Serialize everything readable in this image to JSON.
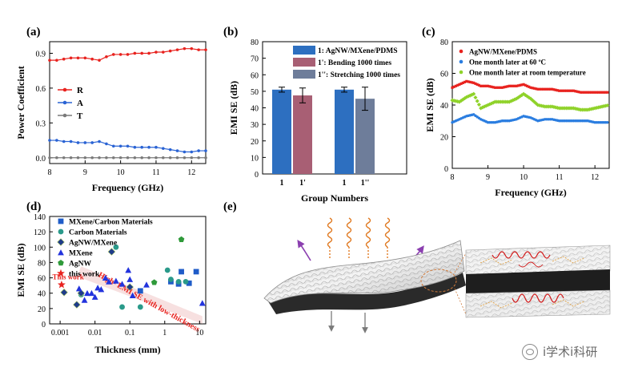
{
  "chart_data": [
    {
      "panel": "(a)",
      "type": "line",
      "xlabel": "Frequency (GHz)",
      "ylabel": "Power Coefficient",
      "xlim": [
        8,
        12.4
      ],
      "ylim": [
        -0.05,
        1.0
      ],
      "xticks": [
        "8",
        "9",
        "10",
        "11",
        "12"
      ],
      "yticks": [
        "0.0",
        "0.3",
        "0.6",
        "0.9"
      ],
      "legend": [
        {
          "name": "R",
          "color": "#e8221e"
        },
        {
          "name": "A",
          "color": "#2a63d4"
        },
        {
          "name": "T",
          "color": "#7a7a7a"
        }
      ],
      "series": [
        {
          "name": "R",
          "color": "#e8221e",
          "x": [
            8.0,
            8.2,
            8.4,
            8.6,
            8.8,
            9.0,
            9.2,
            9.4,
            9.6,
            9.8,
            10.0,
            10.2,
            10.4,
            10.6,
            10.8,
            11.0,
            11.2,
            11.4,
            11.6,
            11.8,
            12.0,
            12.2,
            12.4
          ],
          "y": [
            0.84,
            0.84,
            0.85,
            0.86,
            0.86,
            0.86,
            0.85,
            0.84,
            0.87,
            0.89,
            0.89,
            0.89,
            0.9,
            0.9,
            0.9,
            0.91,
            0.91,
            0.92,
            0.93,
            0.94,
            0.94,
            0.93,
            0.93
          ]
        },
        {
          "name": "A",
          "color": "#2a63d4",
          "x": [
            8.0,
            8.2,
            8.4,
            8.6,
            8.8,
            9.0,
            9.2,
            9.4,
            9.6,
            9.8,
            10.0,
            10.2,
            10.4,
            10.6,
            10.8,
            11.0,
            11.2,
            11.4,
            11.6,
            11.8,
            12.0,
            12.2,
            12.4
          ],
          "y": [
            0.15,
            0.15,
            0.14,
            0.14,
            0.13,
            0.13,
            0.13,
            0.14,
            0.12,
            0.1,
            0.1,
            0.1,
            0.09,
            0.09,
            0.09,
            0.09,
            0.08,
            0.07,
            0.06,
            0.05,
            0.05,
            0.06,
            0.06
          ]
        },
        {
          "name": "T",
          "color": "#7a7a7a",
          "x": [
            8.0,
            8.2,
            8.4,
            8.6,
            8.8,
            9.0,
            9.2,
            9.4,
            9.6,
            9.8,
            10.0,
            10.2,
            10.4,
            10.6,
            10.8,
            11.0,
            11.2,
            11.4,
            11.6,
            11.8,
            12.0,
            12.2,
            12.4
          ],
          "y": [
            0,
            0,
            0,
            0,
            0,
            0,
            0,
            0,
            0,
            0,
            0,
            0,
            0,
            0,
            0,
            0,
            0,
            0,
            0,
            0,
            0,
            0,
            0
          ]
        }
      ]
    },
    {
      "panel": "(b)",
      "type": "bar",
      "xlabel": "Group Numbers",
      "ylabel": "EMI SE (dB)",
      "ylim": [
        0,
        80
      ],
      "yticks": [
        "0",
        "10",
        "20",
        "30",
        "40",
        "50",
        "60",
        "70",
        "80"
      ],
      "legend": [
        {
          "name": "1: AgNW/MXene/PDMS",
          "color": "#2d6fc0"
        },
        {
          "name": "1': Bending 1000 times",
          "color": "#a85f74"
        },
        {
          "name": "1'': Stretching 1000 times",
          "color": "#6e7d9a"
        }
      ],
      "bars": [
        {
          "label": "1",
          "value": 51,
          "error": 1.5,
          "color": "#2d6fc0"
        },
        {
          "label": "1'",
          "value": 47.5,
          "error": 4.5,
          "color": "#a85f74"
        },
        {
          "label": "1",
          "value": 51,
          "error": 1.5,
          "color": "#2d6fc0"
        },
        {
          "label": "1''",
          "value": 45.5,
          "error": 7,
          "color": "#6e7d9a"
        }
      ]
    },
    {
      "panel": "(c)",
      "type": "scatter",
      "xlabel": "Frequency (GHz)",
      "ylabel": "EMI SE (dB)",
      "xlim": [
        8,
        12.4
      ],
      "ylim": [
        0,
        80
      ],
      "xticks": [
        "8",
        "9",
        "10",
        "11",
        "12"
      ],
      "yticks": [
        "0",
        "20",
        "40",
        "60",
        "80"
      ],
      "legend": [
        {
          "name": "AgNW/MXene/PDMS",
          "color": "#e8221e"
        },
        {
          "name": "One month later at 60 ºC",
          "color": "#2a7de0"
        },
        {
          "name": "One month later at room temperature",
          "color": "#8fd22a"
        }
      ],
      "series": [
        {
          "name": "AgNW/MXene/PDMS",
          "color": "#e8221e",
          "x": [
            8.0,
            8.2,
            8.4,
            8.6,
            8.8,
            9.0,
            9.2,
            9.4,
            9.6,
            9.8,
            10.0,
            10.2,
            10.4,
            10.6,
            10.8,
            11.0,
            11.2,
            11.4,
            11.6,
            11.8,
            12.0,
            12.2,
            12.4
          ],
          "y": [
            51,
            53,
            55,
            54,
            52,
            52,
            51,
            51,
            52,
            52,
            53,
            51,
            50,
            50,
            50,
            49,
            49,
            49,
            48,
            48,
            48,
            48,
            48
          ]
        },
        {
          "name": "One month later at 60 ºC",
          "color": "#2a7de0",
          "x": [
            8.0,
            8.2,
            8.4,
            8.6,
            8.8,
            9.0,
            9.2,
            9.4,
            9.6,
            9.8,
            10.0,
            10.2,
            10.4,
            10.6,
            10.8,
            11.0,
            11.2,
            11.4,
            11.6,
            11.8,
            12.0,
            12.2,
            12.4
          ],
          "y": [
            29,
            31,
            33,
            34,
            31,
            29,
            29,
            30,
            30,
            31,
            33,
            32,
            30,
            31,
            31,
            30,
            30,
            30,
            30,
            30,
            29,
            29,
            29
          ]
        },
        {
          "name": "One month later at room temperature",
          "color": "#8fd22a",
          "x": [
            8.0,
            8.2,
            8.4,
            8.6,
            8.8,
            9.0,
            9.2,
            9.4,
            9.6,
            9.8,
            10.0,
            10.2,
            10.4,
            10.6,
            10.8,
            11.0,
            11.2,
            11.4,
            11.6,
            11.8,
            12.0,
            12.2,
            12.4
          ],
          "y": [
            43,
            42,
            45,
            47,
            38,
            40,
            42,
            42,
            42,
            44,
            47,
            44,
            40,
            39,
            39,
            38,
            38,
            38,
            37,
            37,
            38,
            39,
            40
          ]
        }
      ]
    },
    {
      "panel": "(d)",
      "type": "scatter",
      "xlabel": "Thickness (mm)",
      "ylabel": "EMI SE (dB)",
      "xscale": "log",
      "xlim": [
        0.0005,
        15
      ],
      "ylim": [
        0,
        140
      ],
      "xticks": [
        "0.001",
        "0.01",
        "0.1",
        "1",
        "10"
      ],
      "yticks": [
        "0",
        "20",
        "40",
        "60",
        "80",
        "100",
        "120",
        "140"
      ],
      "annotation_this_work": "This work",
      "annotation_trend": "High- EMI SE with low-thickness",
      "legend": [
        {
          "name": "MXene/Carbon Materials",
          "color": "#1f5cc8",
          "shape": "square"
        },
        {
          "name": "Carbon Materials",
          "color": "#2a9a8a",
          "shape": "circle"
        },
        {
          "name": "AgNW/MXene",
          "color": "#1f3c8a",
          "shape": "diamond"
        },
        {
          "name": "MXene",
          "color": "#2233dd",
          "shape": "triangle"
        },
        {
          "name": "AgNW",
          "color": "#2f9a3a",
          "shape": "pentagon"
        },
        {
          "name": "this work",
          "color": "#e8221e",
          "shape": "star"
        }
      ],
      "series": [
        {
          "name": "MXene/Carbon Materials",
          "x": [
            1.5,
            2.5,
            3,
            5,
            8,
            0.2
          ],
          "y": [
            55,
            52,
            68,
            53,
            68,
            43
          ]
        },
        {
          "name": "Carbon Materials",
          "x": [
            0.004,
            0.04,
            0.06,
            0.2,
            1.2,
            1.5,
            2.5,
            4
          ],
          "y": [
            38,
            100,
            22,
            22,
            70,
            58,
            55,
            55
          ]
        },
        {
          "name": "AgNW/MXene",
          "x": [
            0.0013,
            0.003,
            0.004,
            0.03,
            0.1
          ],
          "y": [
            41,
            25,
            40,
            94,
            48
          ]
        },
        {
          "name": "MXene",
          "x": [
            0.0035,
            0.005,
            0.006,
            0.008,
            0.01,
            0.012,
            0.015,
            0.02,
            0.025,
            0.04,
            0.06,
            0.09,
            0.1,
            0.12,
            0.3,
            12
          ],
          "y": [
            46,
            31,
            40,
            40,
            35,
            47,
            45,
            60,
            55,
            56,
            52,
            70,
            58,
            37,
            51,
            27
          ]
        },
        {
          "name": "AgNW",
          "x": [
            0.5,
            3
          ],
          "y": [
            54,
            110
          ]
        },
        {
          "name": "this work",
          "x": [
            0.0011
          ],
          "y": [
            51
          ]
        }
      ]
    }
  ],
  "panel_labels": [
    "(a)",
    "(b)",
    "(c)",
    "(d)",
    "(e)"
  ],
  "watermark": "i学术i科研"
}
